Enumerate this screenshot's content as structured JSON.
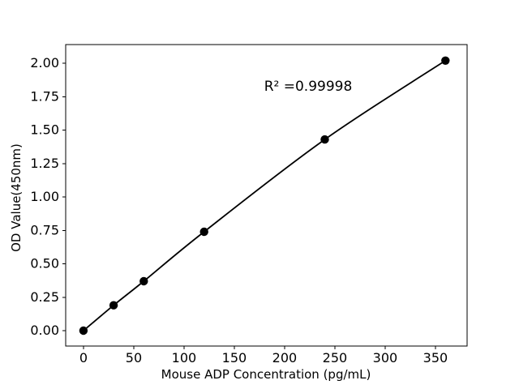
{
  "chart_data": {
    "type": "line",
    "x": [
      0,
      30,
      60,
      120,
      240,
      360
    ],
    "y": [
      0.0,
      0.19,
      0.37,
      0.74,
      1.43,
      2.02
    ],
    "title": "",
    "xlabel": "Mouse ADP Concentration (pg/mL)",
    "ylabel": "OD Value(450nm)",
    "annotation": "R² =0.99998",
    "xticks": [
      "0",
      "50",
      "100",
      "150",
      "200",
      "250",
      "300",
      "350"
    ],
    "yticks": [
      "0.00",
      "0.25",
      "0.50",
      "0.75",
      "1.00",
      "1.25",
      "1.50",
      "1.75",
      "2.00"
    ],
    "xlim": [
      -17.7,
      381.5
    ],
    "ylim": [
      -0.115,
      2.14
    ],
    "grid": false,
    "legend": false,
    "marker": "circle",
    "line_color": "#000000",
    "marker_color": "#000000",
    "axis_color": "#000000",
    "text_color": "#000000",
    "background": "#ffffff"
  }
}
